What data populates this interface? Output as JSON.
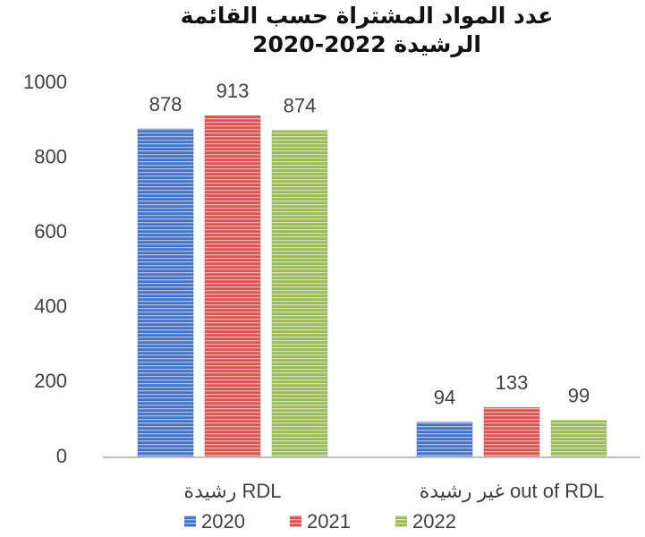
{
  "chart_data": {
    "type": "bar",
    "title": "عدد المواد المشتراة حسب القائمة الرشيدة 2022-2020",
    "categories": [
      "رشيدة RDL",
      "غير رشيدة out of RDL"
    ],
    "series": [
      {
        "name": "2020",
        "color": "#4472c4",
        "values": [
          878,
          94
        ]
      },
      {
        "name": "2021",
        "color": "#d9534f",
        "values": [
          913,
          133
        ]
      },
      {
        "name": "2022",
        "color": "#9bbb59",
        "values": [
          874,
          99
        ]
      }
    ],
    "ylim": [
      0,
      1000
    ],
    "yticks": [
      0,
      200,
      400,
      600,
      800,
      1000
    ],
    "grid": false,
    "legend": "bottom"
  }
}
